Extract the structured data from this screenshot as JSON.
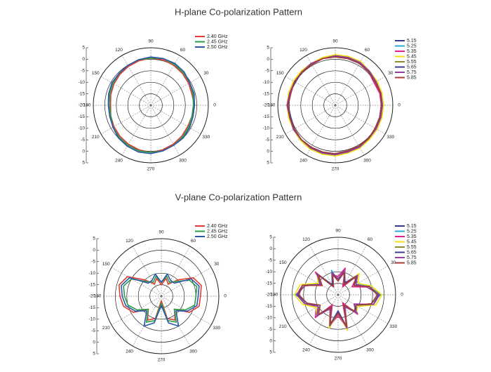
{
  "chart_data": [
    {
      "type": "polar",
      "title": "H-plane Co-polarization Pattern",
      "angles": [
        0,
        15,
        30,
        45,
        60,
        75,
        90,
        105,
        120,
        135,
        150,
        165,
        180,
        195,
        210,
        225,
        240,
        255,
        270,
        285,
        300,
        315,
        330,
        345
      ],
      "ylim": [
        -20,
        5
      ],
      "yticks": [
        5,
        0,
        -5,
        -10,
        -15,
        -20
      ],
      "xticks": [
        0,
        30,
        60,
        90,
        120,
        150,
        180,
        210,
        240,
        270,
        300,
        330
      ],
      "series": [
        {
          "name": "2.40 GHz",
          "color": "#e03c31",
          "values": [
            -1,
            -1.5,
            -1,
            -0.5,
            0,
            0.5,
            0.5,
            0,
            -0.5,
            -1,
            -1.5,
            -2,
            -2.5,
            -2,
            -1.5,
            -1,
            -0.5,
            0,
            0.5,
            0,
            -0.5,
            -1,
            -1.5,
            -1.5
          ]
        },
        {
          "name": "2.45 GHz",
          "color": "#2a9d4a",
          "values": [
            -1.5,
            -1,
            -0.5,
            0,
            0.5,
            1,
            0.5,
            0.5,
            0,
            -0.5,
            -1,
            -1.5,
            -2,
            -2,
            -1,
            -0.5,
            0,
            0.5,
            0.5,
            0.5,
            0,
            -0.5,
            -1,
            -1.5
          ]
        },
        {
          "name": "2.50 GHz",
          "color": "#2a57a8",
          "values": [
            -1,
            -0.5,
            -0.5,
            0.5,
            1,
            1,
            1,
            0.5,
            0,
            -0.5,
            -0.5,
            -1,
            -1.5,
            -1.5,
            -1,
            0,
            0.5,
            1,
            1,
            0.5,
            0,
            0,
            -0.5,
            -1
          ]
        }
      ]
    },
    {
      "type": "polar",
      "angles": [
        0,
        15,
        30,
        45,
        60,
        75,
        90,
        105,
        120,
        135,
        150,
        165,
        180,
        195,
        210,
        225,
        240,
        255,
        270,
        285,
        300,
        315,
        330,
        345
      ],
      "ylim": [
        -20,
        5
      ],
      "yticks": [
        5,
        0,
        -5,
        -10,
        -15,
        -20
      ],
      "xticks": [
        0,
        30,
        60,
        90,
        120,
        150,
        180,
        210,
        240,
        270,
        300,
        330
      ],
      "series": [
        {
          "name": "5.15",
          "color": "#2b3a8f",
          "values": [
            0,
            0.5,
            0,
            0.5,
            1,
            1.5,
            1.5,
            1,
            1,
            0.5,
            0.5,
            0.5,
            0.5,
            0.5,
            0.5,
            1,
            1.5,
            1.5,
            1,
            0.5,
            1,
            0.5,
            0,
            0
          ]
        },
        {
          "name": "5.25",
          "color": "#29abe2",
          "values": [
            0.5,
            1,
            0.5,
            1,
            1.5,
            2,
            1.5,
            1,
            1,
            1,
            0.5,
            0.5,
            1,
            0.5,
            1,
            1.5,
            1.5,
            2,
            1.5,
            1,
            1,
            1,
            0.5,
            0.5
          ]
        },
        {
          "name": "5.35",
          "color": "#e0218a",
          "values": [
            0,
            0,
            -0.5,
            0.5,
            1,
            1,
            1,
            1,
            0.5,
            0.5,
            0.5,
            0,
            0.5,
            0.5,
            0.5,
            1,
            1,
            1.5,
            1,
            1,
            0.5,
            0.5,
            0,
            0
          ]
        },
        {
          "name": "5.45",
          "color": "#f2e30f",
          "values": [
            1,
            1,
            1,
            1,
            2,
            2,
            2,
            1.5,
            1,
            1,
            1,
            1,
            1,
            1,
            1,
            1.5,
            2,
            2,
            2,
            1.5,
            1.5,
            1,
            1,
            1
          ]
        },
        {
          "name": "5.55",
          "color": "#8f8a2b",
          "values": [
            0.5,
            0.5,
            0,
            0.5,
            1,
            1.5,
            1.5,
            1,
            0.5,
            0.5,
            0.5,
            0.5,
            0.5,
            0.5,
            1,
            1,
            1.5,
            1.5,
            1.5,
            1,
            0.5,
            0.5,
            0.5,
            0.5
          ]
        },
        {
          "name": "5.65",
          "color": "#3d3d8f",
          "values": [
            0,
            0.5,
            0,
            0.5,
            1,
            1,
            1.5,
            1,
            0.5,
            0.5,
            0,
            0.5,
            0.5,
            0,
            0.5,
            1,
            1,
            1.5,
            1,
            1,
            0.5,
            0.5,
            0,
            0
          ]
        },
        {
          "name": "5.75",
          "color": "#8e3fa0",
          "values": [
            0.5,
            0.5,
            0.5,
            1,
            1.5,
            1.5,
            1.5,
            1,
            1,
            0.5,
            0.5,
            0.5,
            1,
            0.5,
            1,
            1,
            1.5,
            1.5,
            1.5,
            1,
            1,
            0.5,
            0.5,
            0.5
          ]
        },
        {
          "name": "5.85",
          "color": "#a83a3a",
          "values": [
            0,
            0.5,
            0,
            0.5,
            1,
            1,
            1,
            1,
            0.5,
            0.5,
            0.5,
            0,
            0.5,
            0.5,
            0.5,
            1,
            1,
            1,
            1,
            0.5,
            0.5,
            0.5,
            0,
            0
          ]
        }
      ]
    },
    {
      "type": "polar",
      "title": "V-plane Co-polarization Pattern",
      "angles": [
        0,
        15,
        30,
        45,
        60,
        75,
        90,
        105,
        120,
        135,
        150,
        165,
        180,
        195,
        210,
        225,
        240,
        255,
        270,
        285,
        300,
        315,
        330,
        345
      ],
      "ylim": [
        -20,
        5
      ],
      "yticks": [
        5,
        0,
        -5,
        -10,
        -15,
        -20
      ],
      "xticks": [
        0,
        30,
        60,
        90,
        120,
        150,
        180,
        210,
        240,
        270,
        300,
        330
      ],
      "series": [
        {
          "name": "2.40 GHz",
          "color": "#e03c31",
          "values": [
            -3,
            -2,
            -4,
            -10,
            -14,
            -12,
            -15,
            -12,
            -14,
            -10,
            -3,
            -1,
            -2,
            -3,
            -6,
            -12,
            -8,
            -10,
            -18,
            -10,
            -8,
            -12,
            -6,
            -3
          ]
        },
        {
          "name": "2.45 GHz",
          "color": "#2a9d4a",
          "values": [
            -5,
            -4,
            -6,
            -11,
            -13,
            -11,
            -14,
            -11,
            -13,
            -11,
            -5,
            -3,
            -4,
            -5,
            -8,
            -12,
            -7,
            -9,
            -17,
            -9,
            -7,
            -12,
            -8,
            -5
          ]
        },
        {
          "name": "2.50 GHz",
          "color": "#2a57a8",
          "values": [
            -4,
            -3,
            -5,
            -12,
            -12,
            -10,
            -14,
            -10,
            -12,
            -12,
            -4,
            -2,
            -3,
            -4,
            -7,
            -11,
            -5,
            -8,
            -16,
            -8,
            -5,
            -11,
            -7,
            -4
          ]
        }
      ]
    },
    {
      "type": "polar",
      "angles": [
        0,
        15,
        30,
        45,
        60,
        75,
        90,
        105,
        120,
        135,
        150,
        165,
        180,
        195,
        210,
        225,
        240,
        255,
        270,
        285,
        300,
        315,
        330,
        345
      ],
      "ylim": [
        -20,
        5
      ],
      "yticks": [
        5,
        0,
        -5,
        -10,
        -15,
        -20
      ],
      "xticks": [
        0,
        30,
        60,
        90,
        120,
        150,
        180,
        210,
        240,
        270,
        300,
        330
      ],
      "series": [
        {
          "name": "5.15",
          "color": "#2b3a8f",
          "values": [
            -2,
            -6,
            -12,
            -8,
            -15,
            -9,
            -13,
            -10,
            -16,
            -7,
            -11,
            -4,
            -2,
            -5,
            -10,
            -7,
            -14,
            -6,
            -12,
            -5,
            -15,
            -9,
            -11,
            -4
          ]
        },
        {
          "name": "5.25",
          "color": "#29abe2",
          "values": [
            -1.5,
            -5,
            -11,
            -9,
            -14,
            -10,
            -14,
            -9,
            -15,
            -8,
            -10,
            -5,
            -1.5,
            -6,
            -11,
            -8,
            -13,
            -7,
            -13,
            -6,
            -14,
            -10,
            -10,
            -5
          ]
        },
        {
          "name": "5.35",
          "color": "#e0218a",
          "values": [
            -2,
            -7,
            -13,
            -8,
            -16,
            -8,
            -12,
            -11,
            -16,
            -6,
            -12,
            -4,
            -2,
            -5,
            -9,
            -6,
            -15,
            -6,
            -11,
            -5,
            -16,
            -8,
            -12,
            -4
          ]
        },
        {
          "name": "5.45",
          "color": "#f2e30f",
          "values": [
            -1,
            -5,
            -10,
            -7,
            -14,
            -9,
            -13,
            -10,
            -15,
            -7,
            -10,
            -3,
            -1,
            -4,
            -9,
            -7,
            -13,
            -5,
            -12,
            -4,
            -14,
            -9,
            -10,
            -3
          ]
        },
        {
          "name": "5.55",
          "color": "#8f8a2b",
          "values": [
            -2,
            -6,
            -12,
            -9,
            -15,
            -10,
            -13,
            -11,
            -16,
            -8,
            -11,
            -5,
            -2,
            -5,
            -10,
            -8,
            -14,
            -7,
            -12,
            -6,
            -15,
            -10,
            -11,
            -5
          ]
        },
        {
          "name": "5.65",
          "color": "#3d3d8f",
          "values": [
            -2.5,
            -6,
            -12,
            -8,
            -14,
            -9,
            -14,
            -10,
            -15,
            -7,
            -11,
            -4,
            -2.5,
            -6,
            -10,
            -7,
            -14,
            -6,
            -13,
            -5,
            -15,
            -9,
            -11,
            -4
          ]
        },
        {
          "name": "5.75",
          "color": "#8e3fa0",
          "values": [
            -2,
            -7,
            -11,
            -8,
            -15,
            -9,
            -13,
            -10,
            -16,
            -7,
            -11,
            -5,
            -2,
            -5,
            -10,
            -7,
            -13,
            -6,
            -12,
            -5,
            -14,
            -9,
            -12,
            -4
          ]
        },
        {
          "name": "5.85",
          "color": "#a83a3a",
          "values": [
            -3,
            -6,
            -12,
            -9,
            -15,
            -10,
            -14,
            -11,
            -16,
            -8,
            -12,
            -4,
            -3,
            -6,
            -11,
            -8,
            -14,
            -7,
            -12,
            -6,
            -15,
            -10,
            -11,
            -5
          ]
        }
      ]
    }
  ]
}
